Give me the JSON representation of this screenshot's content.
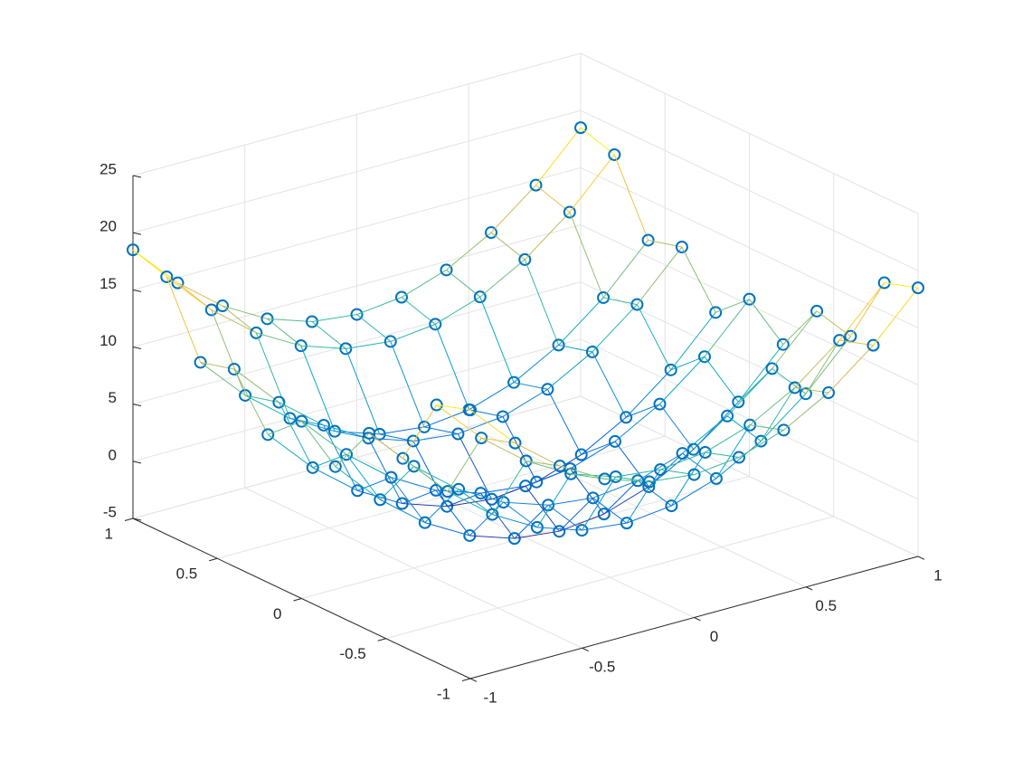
{
  "chart_data": {
    "type": "mesh",
    "x": [
      -1,
      -0.8,
      -0.6,
      -0.4,
      -0.2,
      0,
      0.2,
      0.4,
      0.6,
      0.8,
      1
    ],
    "y": [
      -1,
      -0.8,
      -0.6,
      -0.4,
      -0.2,
      0,
      0.2,
      0.4,
      0.6,
      0.8,
      1
    ],
    "z": [
      [
        18.5,
        14.54,
        11.46,
        9.26,
        7.94,
        7.5,
        7.94,
        9.26,
        11.46,
        14.54,
        18.5
      ],
      [
        17.54,
        13.58,
        10.5,
        8.3,
        6.98,
        6.54,
        6.98,
        8.3,
        10.5,
        13.58,
        17.54
      ],
      [
        11.46,
        7.5,
        4.42,
        2.22,
        0.9,
        0.46,
        0.9,
        2.22,
        4.42,
        7.5,
        11.46
      ],
      [
        12.26,
        8.3,
        5.22,
        3.02,
        1.7,
        1.26,
        1.7,
        3.02,
        5.22,
        8.3,
        12.26
      ],
      [
        7.94,
        3.98,
        0.9,
        -1.3,
        -2.62,
        -3.06,
        -2.62,
        -1.3,
        0.9,
        3.98,
        7.94
      ],
      [
        10.5,
        6.54,
        3.46,
        1.26,
        -0.06,
        -0.5,
        -0.06,
        1.26,
        3.46,
        6.54,
        10.5
      ],
      [
        7.94,
        3.98,
        0.9,
        -1.3,
        -2.62,
        -3.06,
        -2.62,
        -1.3,
        0.9,
        3.98,
        7.94
      ],
      [
        12.26,
        8.3,
        5.22,
        3.02,
        1.7,
        1.26,
        1.7,
        3.02,
        5.22,
        8.3,
        12.26
      ],
      [
        11.46,
        7.5,
        4.42,
        2.22,
        0.9,
        0.46,
        0.9,
        2.22,
        4.42,
        7.5,
        11.46
      ],
      [
        17.54,
        13.58,
        10.5,
        8.3,
        6.98,
        6.54,
        6.98,
        8.3,
        10.5,
        13.58,
        17.54
      ],
      [
        18.5,
        14.54,
        11.46,
        9.26,
        7.94,
        7.5,
        7.94,
        9.26,
        11.46,
        14.54,
        18.5
      ]
    ],
    "xlim": [
      -1,
      1
    ],
    "ylim": [
      -1,
      1
    ],
    "zlim": [
      -5,
      25
    ],
    "xticks": [
      -1,
      -0.5,
      0,
      0.5,
      1
    ],
    "yticks": [
      -1,
      -0.5,
      0,
      0.5,
      1
    ],
    "zticks": [
      -5,
      0,
      5,
      10,
      15,
      20,
      25
    ],
    "grid": true,
    "marker": "o",
    "marker_color": "#0072bd",
    "colormap": [
      "#352a87",
      "#0363e1",
      "#1485d4",
      "#06a7c6",
      "#38b99e",
      "#92bf73",
      "#d9ba56",
      "#fcce2e",
      "#f9fb0e"
    ]
  }
}
